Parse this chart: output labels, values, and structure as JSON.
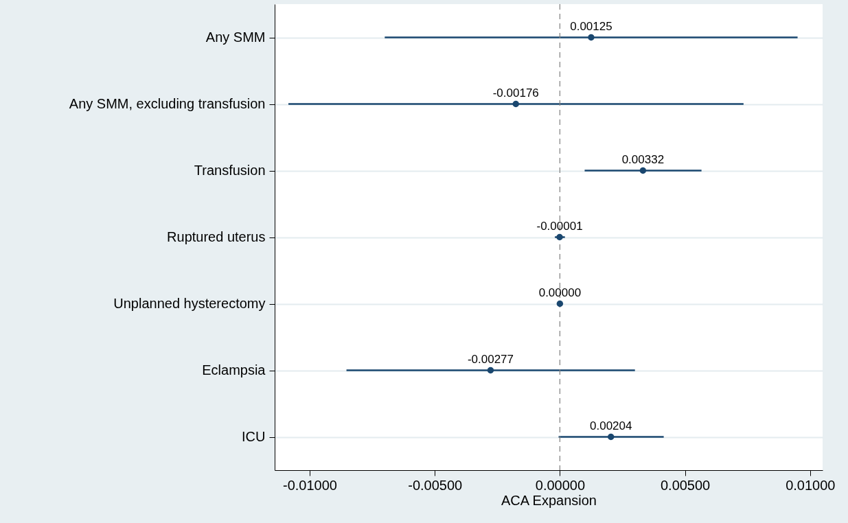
{
  "chart_data": {
    "type": "scatter",
    "orientation": "horizontal",
    "xlabel": "ACA Expansion",
    "categories": [
      "Any SMM",
      "Any SMM, excluding transfusion",
      "Transfusion",
      "Ruptured uterus",
      "Unplanned hysterectomy",
      "Eclampsia",
      "ICU"
    ],
    "series": [
      {
        "color": "#1a476f",
        "values": [
          0.00125,
          -0.00176,
          0.00332,
          -1e-05,
          0.0,
          -0.00277,
          0.00204
        ],
        "errors": [
          [
            -0.007,
            0.0095
          ],
          [
            -0.01085,
            0.00734
          ],
          [
            0.00099,
            0.00566
          ],
          [
            -0.0002,
            0.0002
          ],
          null,
          [
            -0.00853,
            0.003
          ],
          [
            -5e-05,
            0.00415
          ]
        ],
        "value_labels": [
          "0.00125",
          "-0.00176",
          "0.00332",
          "-0.00001",
          "0.00000",
          "-0.00277",
          "0.00204"
        ]
      }
    ],
    "xlim": [
      -0.0114,
      0.0105
    ],
    "xticks": [
      {
        "value": -0.01,
        "label": "-0.01000"
      },
      {
        "value": -0.005,
        "label": "-0.00500"
      },
      {
        "value": 0,
        "label": "0.00000"
      },
      {
        "value": 0.005,
        "label": "0.00500"
      },
      {
        "value": 0.01,
        "label": "0.01000"
      }
    ],
    "ref_lines": [
      {
        "axis": "x",
        "value": 0,
        "color": "#808080",
        "line_style": "dashed"
      }
    ],
    "grid": "y",
    "marker": "circle"
  }
}
